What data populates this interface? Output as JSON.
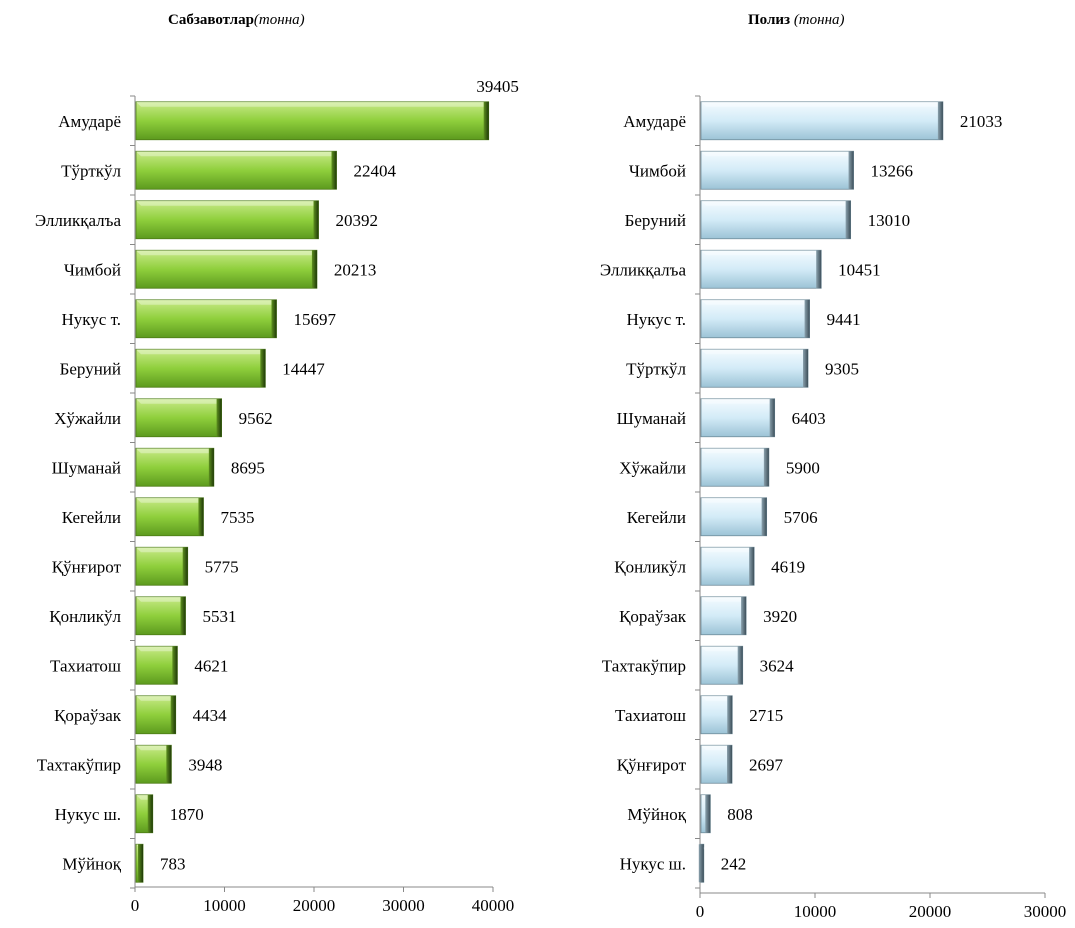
{
  "chart_data": [
    {
      "type": "bar",
      "orientation": "horizontal",
      "title": "Сабзавотлар",
      "title_unit": "(тонна)",
      "categories": [
        "Амударё",
        "Тўрткўл",
        "Элликқалъа",
        "Чимбой",
        "Нукус т.",
        "Беруний",
        "Хўжайли",
        "Шуманай",
        "Кегейли",
        "Қўнғирот",
        "Қонликўл",
        "Тахиатош",
        "Қораўзак",
        "Тахтакўпир",
        "Нукус ш.",
        "Мўйноқ"
      ],
      "values": [
        39405,
        22404,
        20392,
        20213,
        15697,
        14447,
        9562,
        8695,
        7535,
        5775,
        5531,
        4621,
        4434,
        3948,
        1870,
        783
      ],
      "xlim": [
        0,
        40000
      ],
      "xticks": [
        "0",
        "10000",
        "20000",
        "30000",
        "40000"
      ],
      "grid": false,
      "color": "#8fcf3c"
    },
    {
      "type": "bar",
      "orientation": "horizontal",
      "title": "Полиз",
      "title_unit": "(тонна)",
      "categories": [
        "Амударё",
        "Чимбой",
        "Беруний",
        "Элликқалъа",
        "Нукус т.",
        "Тўрткўл",
        "Шуманай",
        "Хўжайли",
        "Кегейли",
        "Қонликўл",
        "Қораўзак",
        "Тахтакўпир",
        "Тахиатош",
        "Қўнғирот",
        "Мўйноқ",
        "Нукус ш."
      ],
      "values": [
        21033,
        13266,
        13010,
        10451,
        9441,
        9305,
        6403,
        5900,
        5706,
        4619,
        3920,
        3624,
        2715,
        2697,
        808,
        242
      ],
      "xlim": [
        0,
        30000
      ],
      "xticks": [
        "0",
        "10000",
        "20000",
        "30000"
      ],
      "grid": false,
      "color": "#d9eef8"
    }
  ]
}
